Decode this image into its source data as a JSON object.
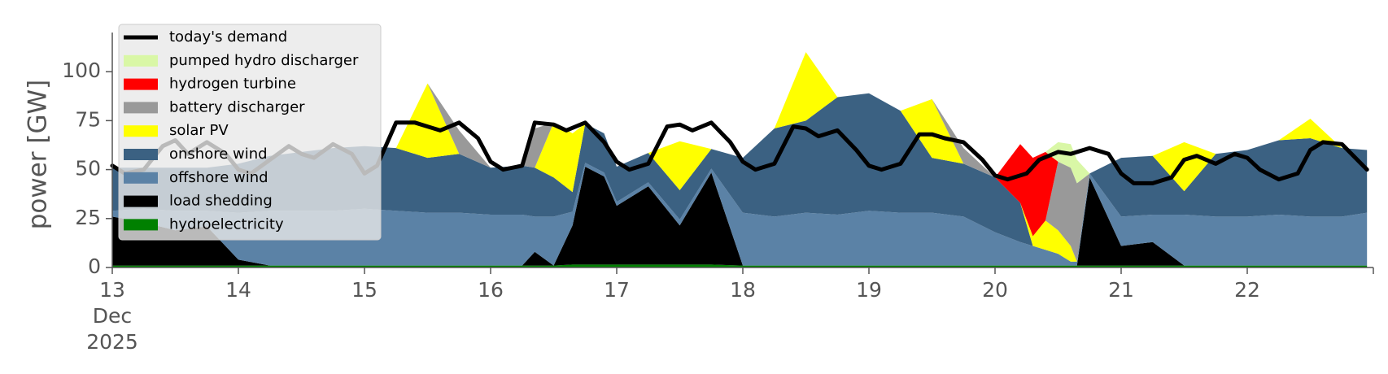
{
  "chart_data": {
    "type": "area",
    "ylabel": "power [GW]",
    "ylim": [
      0,
      120
    ],
    "xlim": [
      13,
      23
    ],
    "yticks": [
      0,
      25,
      50,
      75,
      100
    ],
    "xticks": [
      {
        "x": 13,
        "lines": [
          "13",
          "Dec",
          "2025"
        ]
      },
      {
        "x": 14,
        "lines": [
          "14"
        ]
      },
      {
        "x": 15,
        "lines": [
          "15"
        ]
      },
      {
        "x": 16,
        "lines": [
          "16"
        ]
      },
      {
        "x": 17,
        "lines": [
          "17"
        ]
      },
      {
        "x": 18,
        "lines": [
          "18"
        ]
      },
      {
        "x": 19,
        "lines": [
          "19"
        ]
      },
      {
        "x": 20,
        "lines": [
          "20"
        ]
      },
      {
        "x": 21,
        "lines": [
          "21"
        ]
      },
      {
        "x": 22,
        "lines": [
          "22"
        ]
      }
    ],
    "grid": false,
    "legend_position": "upper-left",
    "legend": [
      {
        "label": "today's demand",
        "color": "#000000",
        "kind": "line"
      },
      {
        "label": "pumped hydro discharger",
        "color": "#d9f7a6",
        "kind": "patch"
      },
      {
        "label": "hydrogen turbine",
        "color": "#ff0000",
        "kind": "patch"
      },
      {
        "label": "battery discharger",
        "color": "#999999",
        "kind": "patch"
      },
      {
        "label": "solar PV",
        "color": "#ffff00",
        "kind": "patch"
      },
      {
        "label": "onshore wind",
        "color": "#3b6182",
        "kind": "patch"
      },
      {
        "label": "offshore wind",
        "color": "#5b82a6",
        "kind": "patch"
      },
      {
        "label": "load shedding",
        "color": "#000000",
        "kind": "patch"
      },
      {
        "label": "hydroelectricity",
        "color": "#008000",
        "kind": "patch"
      }
    ],
    "x": [
      13.0,
      13.25,
      13.5,
      13.75,
      14.0,
      14.25,
      14.5,
      14.75,
      15.0,
      15.25,
      15.5,
      15.75,
      16.0,
      16.25,
      16.35,
      16.5,
      16.65,
      16.75,
      16.9,
      17.0,
      17.25,
      17.5,
      17.75,
      18.0,
      18.25,
      18.5,
      18.75,
      19.0,
      19.25,
      19.5,
      19.75,
      20.0,
      20.2,
      20.3,
      20.4,
      20.5,
      20.6,
      20.65,
      20.75,
      21.0,
      21.25,
      21.5,
      21.75,
      22.0,
      22.25,
      22.5,
      22.75,
      22.95
    ],
    "series": [
      {
        "name": "hydroelectricity",
        "color": "#008000",
        "values": [
          1,
          1,
          1,
          1,
          1,
          1,
          1,
          1,
          1,
          1,
          1,
          1,
          1,
          1,
          1,
          1,
          1.5,
          1.5,
          1.5,
          1.5,
          1.5,
          1.5,
          1.5,
          1,
          1,
          1,
          1,
          1,
          1,
          1,
          1,
          1,
          1,
          1,
          1,
          1,
          1,
          1,
          1,
          1,
          1,
          1,
          1,
          1,
          1,
          1,
          1,
          1
        ]
      },
      {
        "name": "load shedding",
        "color": "#000000",
        "values": [
          25,
          22,
          18,
          20,
          3,
          0,
          0,
          0,
          0,
          0,
          0,
          0,
          0,
          0,
          7,
          0,
          20,
          50,
          45,
          30,
          40,
          20,
          47,
          0,
          0,
          0,
          0,
          0,
          0,
          0,
          0,
          0,
          0,
          0,
          0,
          0,
          0,
          0,
          45,
          10,
          12,
          0,
          0,
          0,
          0,
          0,
          0,
          0
        ]
      },
      {
        "name": "offshore wind",
        "color": "#5b82a6",
        "values": [
          3,
          7,
          10,
          8,
          24,
          28,
          28,
          28,
          29,
          28,
          27,
          27,
          26,
          26,
          18,
          25,
          7,
          2,
          2,
          2,
          2,
          3,
          2,
          27,
          25,
          27,
          26,
          28,
          27,
          27,
          25,
          17,
          12,
          10,
          8,
          6,
          2,
          2,
          2,
          15,
          14,
          26,
          25,
          25,
          26,
          25,
          25,
          27
        ]
      },
      {
        "name": "onshore wind",
        "color": "#3b6182",
        "values": [
          22,
          21,
          22,
          22,
          25,
          28,
          30,
          32,
          32,
          32,
          28,
          30,
          24,
          25,
          25,
          20,
          10,
          20,
          20,
          18,
          15,
          15,
          10,
          28,
          45,
          47,
          60,
          60,
          52,
          28,
          27,
          28,
          20,
          0,
          0,
          0,
          0,
          0,
          0,
          30,
          30,
          12,
          32,
          34,
          38,
          40,
          35,
          32
        ]
      },
      {
        "name": "solar PV",
        "color": "#ffff00",
        "values": [
          0,
          0,
          0,
          0,
          0,
          0,
          0,
          0,
          0,
          0,
          38,
          0,
          0,
          0,
          0,
          28,
          30,
          0,
          0,
          0,
          0,
          25,
          0,
          0,
          0,
          35,
          0,
          0,
          0,
          30,
          0,
          0,
          0,
          5,
          15,
          12,
          8,
          0,
          0,
          0,
          0,
          25,
          0,
          0,
          0,
          10,
          0,
          0
        ]
      },
      {
        "name": "battery discharger",
        "color": "#999999",
        "values": [
          0,
          0,
          0,
          0,
          0,
          0,
          0,
          0,
          0,
          0,
          0,
          12,
          0,
          0,
          20,
          0,
          0,
          0,
          0,
          0,
          0,
          0,
          0,
          0,
          0,
          0,
          0,
          0,
          0,
          0,
          8,
          0,
          0,
          0,
          0,
          35,
          40,
          40,
          0,
          0,
          0,
          0,
          0,
          0,
          0,
          0,
          0,
          0
        ]
      },
      {
        "name": "hydrogen turbine",
        "color": "#ff0000",
        "values": [
          0,
          0,
          0,
          0,
          0,
          0,
          0,
          0,
          0,
          0,
          0,
          0,
          0,
          0,
          0,
          0,
          0,
          0,
          0,
          0,
          0,
          0,
          0,
          0,
          0,
          0,
          0,
          0,
          0,
          0,
          0,
          0,
          30,
          40,
          35,
          0,
          0,
          0,
          0,
          0,
          0,
          0,
          0,
          0,
          0,
          0,
          0,
          0
        ]
      },
      {
        "name": "pumped hydro discharger",
        "color": "#d9f7a6",
        "values": [
          0,
          0,
          0,
          0,
          0,
          0,
          0,
          0,
          0,
          0,
          0,
          0,
          0,
          0,
          0,
          0,
          0,
          0,
          0,
          0,
          0,
          0,
          0,
          0,
          0,
          0,
          0,
          0,
          0,
          0,
          0,
          0,
          0,
          0,
          0,
          10,
          12,
          12,
          0,
          0,
          0,
          0,
          0,
          0,
          0,
          0,
          0,
          0
        ]
      }
    ],
    "demand": {
      "name": "today's demand",
      "color": "#000000",
      "x": [
        13.0,
        13.1,
        13.25,
        13.4,
        13.5,
        13.6,
        13.75,
        13.9,
        14.0,
        14.1,
        14.25,
        14.4,
        14.5,
        14.6,
        14.75,
        14.9,
        15.0,
        15.1,
        15.25,
        15.4,
        15.5,
        15.6,
        15.75,
        15.9,
        16.0,
        16.1,
        16.25,
        16.35,
        16.5,
        16.6,
        16.75,
        16.9,
        17.0,
        17.1,
        17.25,
        17.4,
        17.5,
        17.6,
        17.75,
        17.9,
        18.0,
        18.1,
        18.25,
        18.4,
        18.5,
        18.6,
        18.75,
        18.9,
        19.0,
        19.1,
        19.25,
        19.4,
        19.5,
        19.6,
        19.75,
        19.9,
        20.0,
        20.1,
        20.25,
        20.35,
        20.5,
        20.6,
        20.75,
        20.9,
        21.0,
        21.1,
        21.25,
        21.4,
        21.5,
        21.6,
        21.75,
        21.9,
        22.0,
        22.1,
        22.25,
        22.4,
        22.5,
        22.6,
        22.75,
        22.95
      ],
      "values": [
        52,
        48,
        50,
        62,
        65,
        58,
        64,
        58,
        50,
        48,
        55,
        62,
        58,
        56,
        63,
        58,
        48,
        52,
        74,
        74,
        72,
        70,
        74,
        66,
        54,
        50,
        52,
        74,
        73,
        70,
        74,
        64,
        54,
        50,
        53,
        72,
        73,
        70,
        74,
        64,
        54,
        50,
        53,
        72,
        71,
        67,
        70,
        60,
        52,
        50,
        53,
        68,
        68,
        66,
        64,
        55,
        47,
        45,
        48,
        55,
        59,
        58,
        61,
        58,
        48,
        43,
        43,
        46,
        55,
        57,
        53,
        58,
        56,
        50,
        45,
        48,
        60,
        64,
        63,
        50
      ]
    }
  }
}
